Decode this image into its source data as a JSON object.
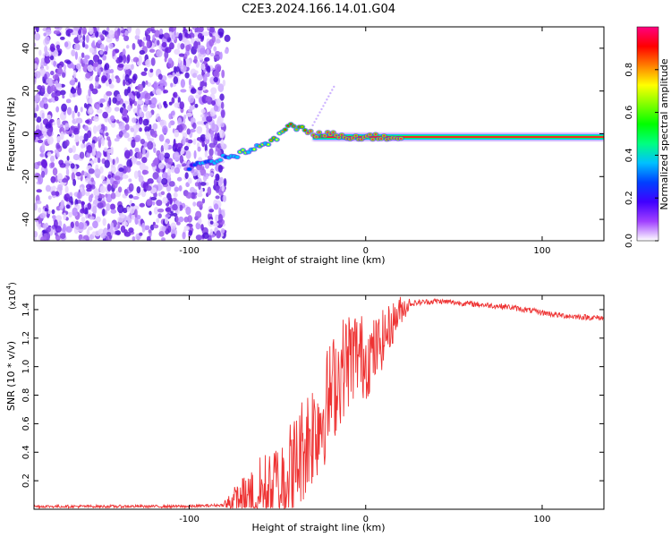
{
  "title": "C2E3.2024.166.14.01.G04",
  "chart_data": [
    {
      "type": "heatmap",
      "title": "C2E3.2024.166.14.01.G04",
      "xlabel": "Height of straight line (km)",
      "ylabel": "Frequency (Hz)",
      "xlim": [
        -188,
        135
      ],
      "ylim": [
        -50,
        50
      ],
      "xticks": [
        -100,
        0,
        100
      ],
      "xtick_labels": [
        "-100",
        "0",
        "100"
      ],
      "yticks": [
        -40,
        -20,
        0,
        20,
        40
      ],
      "ytick_labels": [
        "-40",
        "-20",
        "0",
        "20",
        "40"
      ],
      "noise_region_x": [
        -188,
        -80
      ],
      "signal_track": [
        {
          "x": -100,
          "f": -16
        },
        {
          "x": -90,
          "f": -14
        },
        {
          "x": -80,
          "f": -11
        },
        {
          "x": -70,
          "f": -9
        },
        {
          "x": -60,
          "f": -6
        },
        {
          "x": -50,
          "f": -2
        },
        {
          "x": -42,
          "f": 4
        },
        {
          "x": -35,
          "f": 2
        },
        {
          "x": -28,
          "f": 0
        },
        {
          "x": -20,
          "f": -0.5
        },
        {
          "x": 0,
          "f": -1.5
        },
        {
          "x": 50,
          "f": -1.5
        },
        {
          "x": 100,
          "f": -1.5
        },
        {
          "x": 135,
          "f": -1.5
        }
      ],
      "colorbar": {
        "label": "Normalized spectral amplitude",
        "range": [
          0,
          1
        ],
        "ticks": [
          "0.0",
          "0.2",
          "0.4",
          "0.6",
          "0.8"
        ],
        "colors": [
          "#ffffff",
          "#a040ff",
          "#4000ff",
          "#0040ff",
          "#00c0ff",
          "#00ff80",
          "#00ff00",
          "#80ff00",
          "#ffff00",
          "#ff8000",
          "#ff0000",
          "#ff0080"
        ]
      }
    },
    {
      "type": "line",
      "xlabel": "Height of straight line (km)",
      "ylabel": "SNR (10 * v/v)",
      "y_multiplier": "(x10^4)",
      "multiplier_base": "(x10",
      "multiplier_exp": "4",
      "multiplier_close": ")",
      "xlim": [
        -188,
        135
      ],
      "ylim": [
        0,
        1.5
      ],
      "xticks": [
        -100,
        0,
        100
      ],
      "xtick_labels": [
        "-100",
        "0",
        "100"
      ],
      "yticks": [
        0.2,
        0.4,
        0.6,
        0.8,
        1.0,
        1.2,
        1.4
      ],
      "ytick_labels": [
        "0.2",
        "0.4",
        "0.6",
        "0.8",
        "1.0",
        "1.2",
        "1.4"
      ],
      "color": "#ee3333",
      "series": [
        {
          "name": "SNR",
          "x": [
            -188,
            -160,
            -130,
            -100,
            -80,
            -70,
            -60,
            -50,
            -40,
            -35,
            -30,
            -25,
            -20,
            -15,
            -10,
            -5,
            0,
            5,
            10,
            15,
            20,
            25,
            30,
            40,
            50,
            60,
            70,
            80,
            90,
            100,
            110,
            120,
            135
          ],
          "y": [
            0.02,
            0.02,
            0.02,
            0.02,
            0.03,
            0.07,
            0.12,
            0.18,
            0.3,
            0.45,
            0.55,
            0.65,
            0.8,
            0.95,
            1.05,
            1.1,
            1.05,
            1.1,
            1.2,
            1.3,
            1.4,
            1.44,
            1.45,
            1.46,
            1.45,
            1.44,
            1.43,
            1.42,
            1.4,
            1.38,
            1.36,
            1.35,
            1.34
          ]
        }
      ]
    }
  ]
}
